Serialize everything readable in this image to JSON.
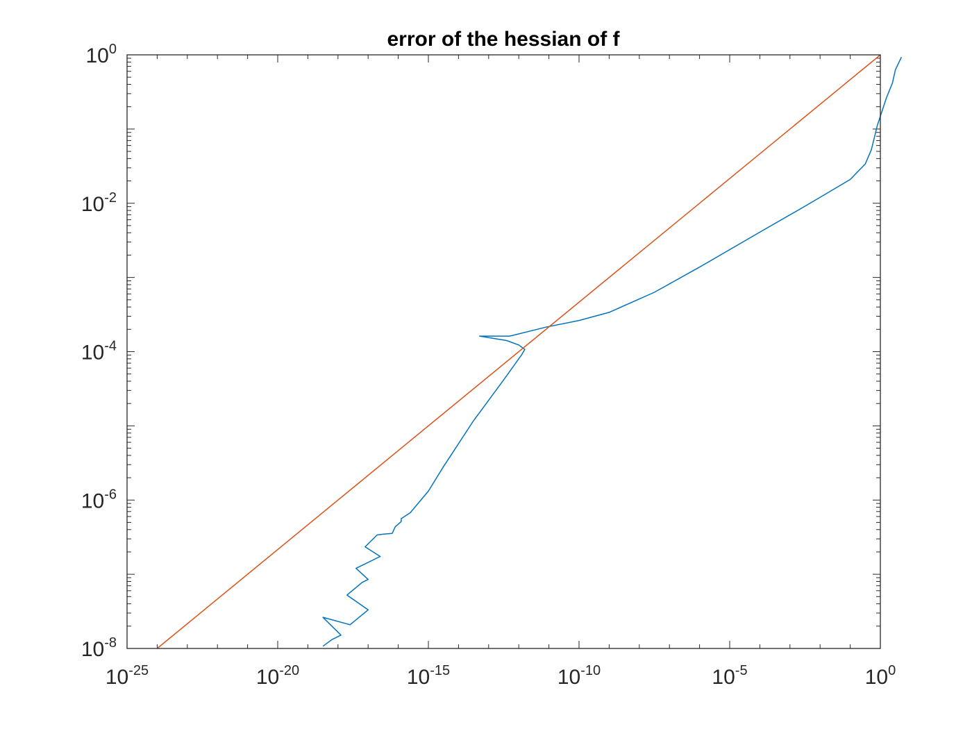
{
  "chart_data": {
    "type": "line",
    "title": "error of the hessian of f",
    "xlabel": "",
    "ylabel": "",
    "xscale": "log",
    "yscale": "log",
    "xlim_exponent": [
      -25,
      0
    ],
    "ylim_exponent": [
      -8,
      0
    ],
    "x_tick_labels": [
      {
        "base": "10",
        "exp": "-25"
      },
      {
        "base": "10",
        "exp": "-20"
      },
      {
        "base": "10",
        "exp": "-15"
      },
      {
        "base": "10",
        "exp": "-10"
      },
      {
        "base": "10",
        "exp": "-5"
      },
      {
        "base": "10",
        "exp": "0"
      }
    ],
    "y_tick_labels": [
      {
        "base": "10",
        "exp": "-8"
      },
      {
        "base": "10",
        "exp": "-6"
      },
      {
        "base": "10",
        "exp": "-4"
      },
      {
        "base": "10",
        "exp": "-2"
      },
      {
        "base": "10",
        "exp": "0"
      }
    ],
    "grid": false,
    "series": [
      {
        "color": "#0072BD",
        "log10_x": [
          -18.5,
          -18.2,
          -17.9,
          -18.5,
          -17.6,
          -17.0,
          -17.7,
          -17.2,
          -17.0,
          -17.4,
          -16.6,
          -17.1,
          -16.7,
          -16.5,
          -16.2,
          -16.1,
          -15.9,
          -15.9,
          -15.6,
          -15.0,
          -14.5,
          -13.5,
          -12.5,
          -11.9,
          -11.8,
          -12.0,
          -12.4,
          -13.3,
          -12.3,
          -11.1,
          -10.0,
          -9.0,
          -7.5,
          -6.0,
          -4.0,
          -2.5,
          -1.0,
          -0.5,
          -0.3,
          -0.1,
          0.2,
          0.4,
          0.5,
          0.7
        ],
        "log10_y": [
          -7.97,
          -7.88,
          -7.82,
          -7.58,
          -7.68,
          -7.48,
          -7.28,
          -7.11,
          -7.07,
          -6.92,
          -6.76,
          -6.63,
          -6.47,
          -6.46,
          -6.45,
          -6.36,
          -6.29,
          -6.25,
          -6.17,
          -5.88,
          -5.55,
          -4.93,
          -4.38,
          -4.04,
          -3.97,
          -3.91,
          -3.85,
          -3.79,
          -3.79,
          -3.67,
          -3.58,
          -3.47,
          -3.2,
          -2.86,
          -2.39,
          -2.04,
          -1.68,
          -1.47,
          -1.28,
          -0.95,
          -0.58,
          -0.38,
          -0.2,
          -0.03
        ]
      },
      {
        "color": "#D95319",
        "log10_x": [
          -24,
          0
        ],
        "log10_y": [
          -8,
          0
        ]
      }
    ]
  }
}
